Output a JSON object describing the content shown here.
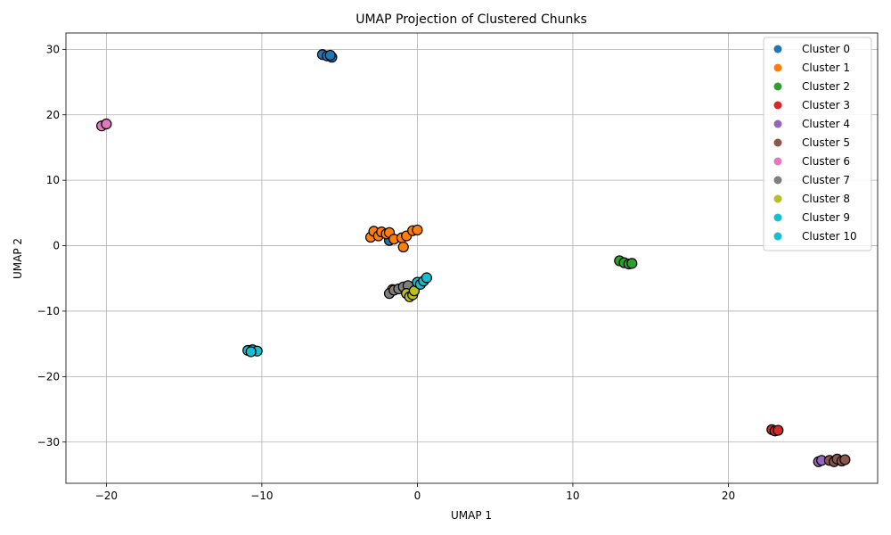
{
  "chart_data": {
    "type": "scatter",
    "title": "UMAP Projection of Clustered Chunks",
    "xlabel": "UMAP 1",
    "ylabel": "UMAP 2",
    "xlim": [
      -22.6,
      29.6
    ],
    "ylim": [
      -36.3,
      32.5
    ],
    "xticks": [
      -20,
      -10,
      0,
      10,
      20
    ],
    "yticks": [
      -30,
      -20,
      -10,
      0,
      10,
      20,
      30
    ],
    "grid": true,
    "legend_position": "upper-right",
    "series": [
      {
        "name": "Cluster 0",
        "color": "#1f77b4",
        "points": [
          [
            -6.1,
            29.2
          ],
          [
            -5.8,
            29.0
          ],
          [
            -5.5,
            28.8
          ],
          [
            -5.6,
            29.1
          ],
          [
            -1.8,
            0.8
          ]
        ]
      },
      {
        "name": "Cluster 1",
        "color": "#ff7f0e",
        "points": [
          [
            -3.0,
            1.3
          ],
          [
            -2.8,
            2.2
          ],
          [
            -2.5,
            1.5
          ],
          [
            -2.3,
            2.1
          ],
          [
            -2.0,
            1.8
          ],
          [
            -1.8,
            2.0
          ],
          [
            -1.5,
            1.0
          ],
          [
            -1.0,
            1.2
          ],
          [
            -0.9,
            -0.2
          ],
          [
            -0.7,
            1.5
          ],
          [
            -0.3,
            2.3
          ],
          [
            0.0,
            2.4
          ],
          [
            -1.6,
            -6.7
          ]
        ]
      },
      {
        "name": "Cluster 2",
        "color": "#2ca02c",
        "points": [
          [
            13.0,
            -2.3
          ],
          [
            13.3,
            -2.6
          ],
          [
            13.6,
            -2.8
          ],
          [
            13.8,
            -2.7
          ]
        ]
      },
      {
        "name": "Cluster 3",
        "color": "#d62728",
        "points": [
          [
            22.8,
            -28.1
          ],
          [
            23.0,
            -28.3
          ],
          [
            23.2,
            -28.2
          ]
        ]
      },
      {
        "name": "Cluster 4",
        "color": "#9467bd",
        "points": [
          [
            25.8,
            -33.0
          ],
          [
            26.0,
            -32.8
          ]
        ]
      },
      {
        "name": "Cluster 5",
        "color": "#8c564b",
        "points": [
          [
            26.5,
            -32.8
          ],
          [
            26.8,
            -33.0
          ],
          [
            27.0,
            -32.6
          ],
          [
            27.3,
            -32.9
          ],
          [
            27.5,
            -32.7
          ]
        ]
      },
      {
        "name": "Cluster 6",
        "color": "#e377c2",
        "points": [
          [
            -20.3,
            18.3
          ],
          [
            -20.0,
            18.6
          ]
        ]
      },
      {
        "name": "Cluster 7",
        "color": "#7f7f7f",
        "points": [
          [
            -1.8,
            -7.3
          ],
          [
            -1.5,
            -6.8
          ],
          [
            -1.2,
            -6.6
          ],
          [
            -0.9,
            -6.3
          ],
          [
            -0.6,
            -6.1
          ]
        ]
      },
      {
        "name": "Cluster 8",
        "color": "#bcbd22",
        "points": [
          [
            -0.7,
            -7.3
          ],
          [
            -0.5,
            -7.8
          ],
          [
            -0.3,
            -7.5
          ],
          [
            -0.2,
            -6.9
          ]
        ]
      },
      {
        "name": "Cluster 9",
        "color": "#17becf",
        "points": [
          [
            -10.9,
            -16.0
          ],
          [
            -10.6,
            -15.9
          ],
          [
            -10.3,
            -16.1
          ],
          [
            -10.7,
            -16.2
          ]
        ]
      },
      {
        "name": "Cluster 10",
        "color": "#17becf",
        "points": [
          [
            0.0,
            -5.6
          ],
          [
            0.2,
            -5.9
          ],
          [
            0.4,
            -5.4
          ],
          [
            0.6,
            -4.9
          ]
        ]
      }
    ]
  }
}
